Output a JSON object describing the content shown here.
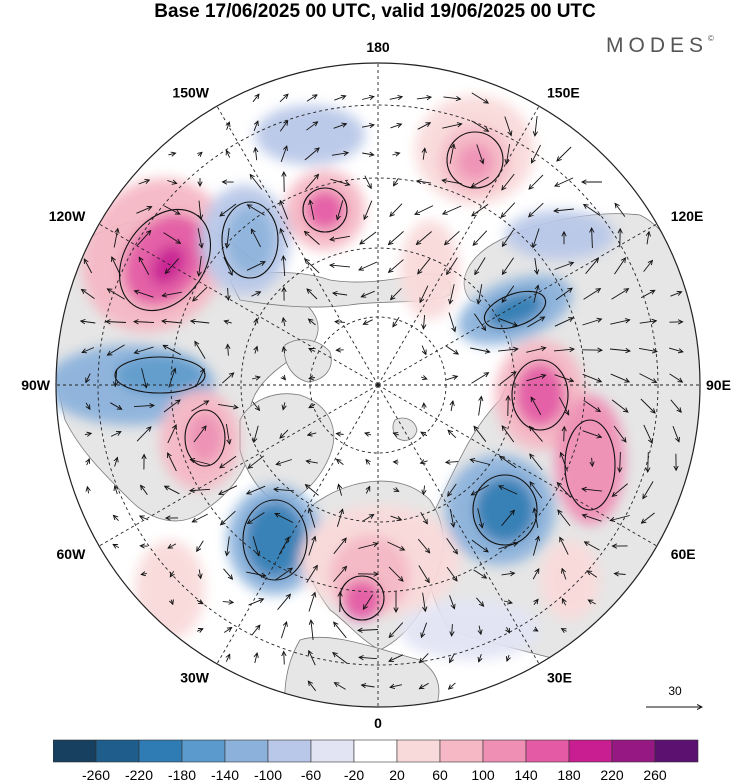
{
  "title": "Base 17/06/2025 00 UTC, valid 19/06/2025 00 UTC",
  "brand": "MODES",
  "brand_mark": "©",
  "map": {
    "projection": "north-polar-stereographic",
    "longitude_labels": [
      {
        "text": "180",
        "lon": 180
      },
      {
        "text": "150E",
        "lon": 150
      },
      {
        "text": "120E",
        "lon": 120
      },
      {
        "text": "90E",
        "lon": 90
      },
      {
        "text": "60E",
        "lon": 60
      },
      {
        "text": "30E",
        "lon": 30
      },
      {
        "text": "0",
        "lon": 0
      },
      {
        "text": "30W",
        "lon": -30
      },
      {
        "text": "60W",
        "lon": -60
      },
      {
        "text": "90W",
        "lon": -90
      },
      {
        "text": "120W",
        "lon": -120
      },
      {
        "text": "150W",
        "lon": -150
      }
    ],
    "reference_vector_label": "30",
    "colors": {
      "land": "#e6e6e6",
      "ocean": "#ffffff",
      "coastline": "#777777",
      "grid": "#222222",
      "contour": "#111111",
      "vector": "#111111"
    }
  },
  "colorbar": {
    "ticks": [
      "-260",
      "-220",
      "-180",
      "-140",
      "-100",
      "-60",
      "-20",
      "20",
      "60",
      "100",
      "140",
      "180",
      "220",
      "260"
    ],
    "colors": [
      "#173f5f",
      "#1f5d8c",
      "#2f7bb4",
      "#5b9acc",
      "#8cb2dc",
      "#b9c8e8",
      "#e2e4f4",
      "#ffffff",
      "#f9dada",
      "#f5b8c4",
      "#ef8fb4",
      "#e45aa4",
      "#c91e91",
      "#961883",
      "#5c1070"
    ]
  }
}
